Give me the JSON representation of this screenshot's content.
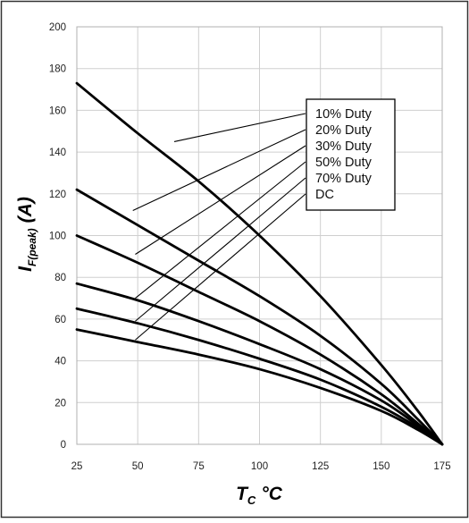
{
  "chart_data": {
    "type": "line",
    "title": "",
    "xlabel": "T",
    "xlabel_sub": "C",
    "xlabel_unit": "°C",
    "ylabel": "I",
    "ylabel_sub": "F(peak)",
    "ylabel_unit": "(A)",
    "xlim": [
      25,
      175
    ],
    "ylim": [
      0,
      200
    ],
    "xticks": [
      25,
      50,
      75,
      100,
      125,
      150,
      175
    ],
    "yticks": [
      0,
      20,
      40,
      60,
      80,
      100,
      120,
      140,
      160,
      180,
      200
    ],
    "grid": true,
    "legend_placement": "top-right",
    "line_color": "#000000",
    "series": [
      {
        "name": "10% Duty",
        "x": [
          25,
          50,
          75,
          100,
          125,
          150,
          165,
          175
        ],
        "y": [
          173,
          149,
          126,
          100,
          71,
          38,
          16,
          0
        ]
      },
      {
        "name": "20% Duty",
        "x": [
          25,
          50,
          75,
          100,
          125,
          150,
          165,
          175
        ],
        "y": [
          122,
          105,
          88,
          71,
          52,
          29,
          12,
          0
        ]
      },
      {
        "name": "30% Duty",
        "x": [
          25,
          50,
          75,
          100,
          125,
          150,
          165,
          175
        ],
        "y": [
          100,
          87,
          73,
          59,
          43,
          24,
          10,
          0
        ]
      },
      {
        "name": "50% Duty",
        "x": [
          25,
          50,
          75,
          100,
          125,
          150,
          165,
          175
        ],
        "y": [
          77,
          69,
          59,
          48,
          36,
          21,
          9,
          0
        ]
      },
      {
        "name": "70% Duty",
        "x": [
          25,
          50,
          75,
          100,
          125,
          150,
          165,
          175
        ],
        "y": [
          65,
          58,
          50,
          41,
          31,
          18,
          8,
          0
        ]
      },
      {
        "name": "DC",
        "x": [
          25,
          50,
          75,
          100,
          125,
          150,
          165,
          175
        ],
        "y": [
          55,
          49,
          43,
          36,
          27,
          16,
          7,
          0
        ]
      }
    ],
    "leader_anchors": [
      {
        "series": "10% Duty",
        "x": 65,
        "y": 145
      },
      {
        "series": "20% Duty",
        "x": 48,
        "y": 112
      },
      {
        "series": "30% Duty",
        "x": 49,
        "y": 91
      },
      {
        "series": "50% Duty",
        "x": 49,
        "y": 70
      },
      {
        "series": "70% Duty",
        "x": 49,
        "y": 59
      },
      {
        "series": "DC",
        "x": 49,
        "y": 50
      }
    ]
  }
}
